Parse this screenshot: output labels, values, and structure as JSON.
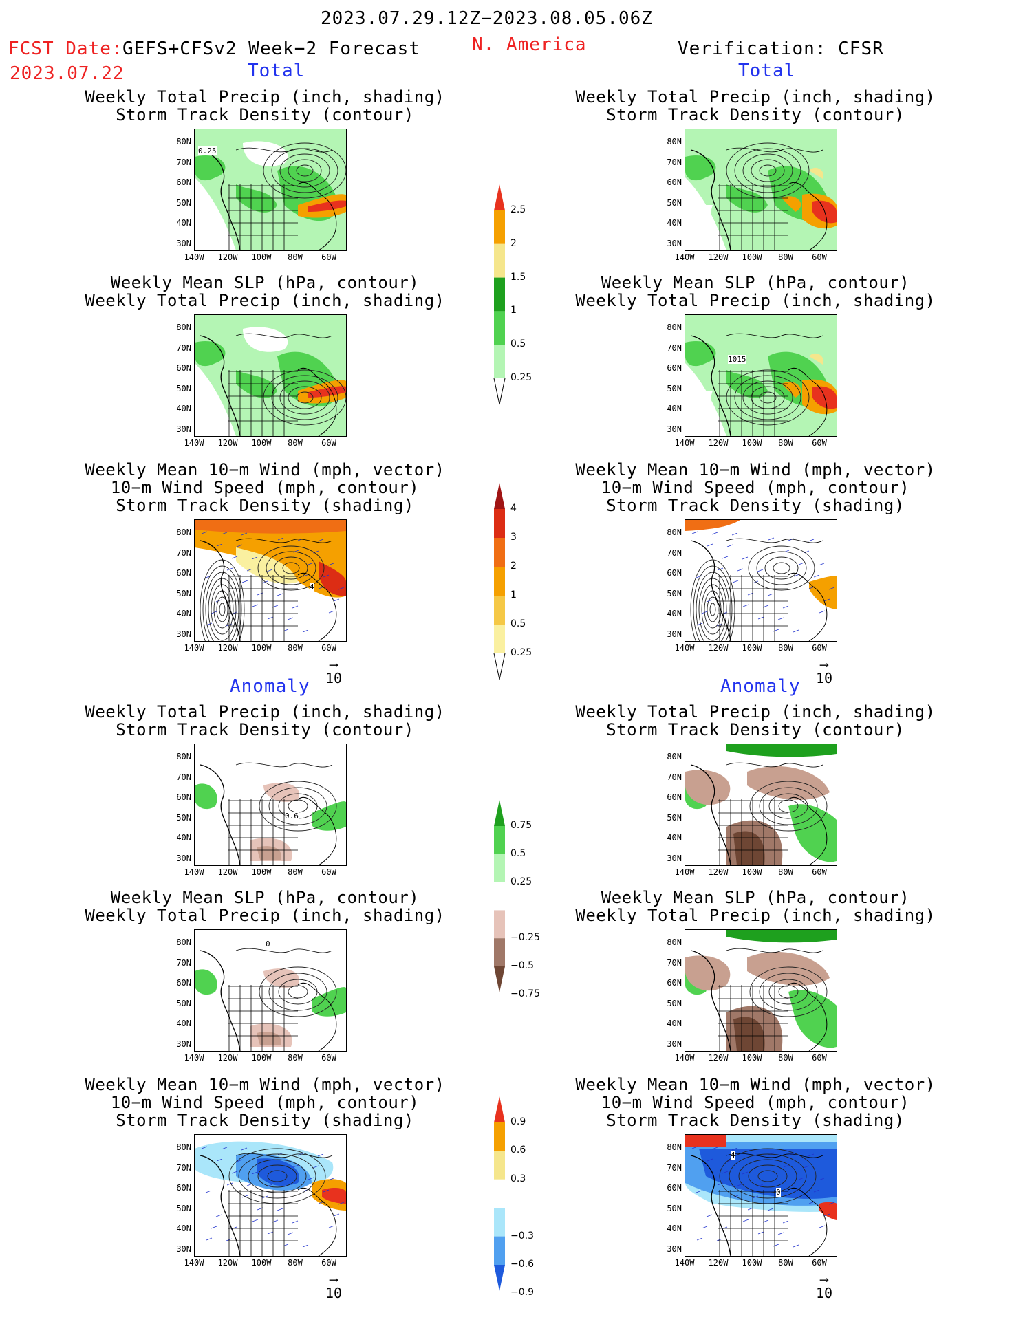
{
  "header": {
    "period": "2023.07.29.12Z−2023.08.05.06Z",
    "fcst_label": "FCST Date:",
    "fcst_date": "2023.07.22",
    "model": "GEFS+CFSv2 Week−2 Forecast",
    "region": "N. America",
    "verification": "Verification: CFSR"
  },
  "sections": {
    "total": "Total",
    "anomaly": "Anomaly"
  },
  "titles": {
    "precip_track": [
      "Weekly Total Precip (inch, shading)",
      "Storm Track Density (contour)"
    ],
    "slp_precip": [
      "Weekly Mean SLP (hPa, contour)",
      "Weekly Total Precip (inch, shading)"
    ],
    "wind_track": [
      "Weekly Mean 10−m Wind (mph, vector)",
      "10−m Wind Speed (mph, contour)",
      "Storm Track Density (shading)"
    ]
  },
  "axes": {
    "lat": [
      "80N",
      "70N",
      "60N",
      "50N",
      "40N",
      "30N"
    ],
    "lon": [
      "140W",
      "120W",
      "100W",
      "80W",
      "60W"
    ]
  },
  "vector_ref": "10",
  "map_labels": {
    "fcst_precip_contour": "0.25",
    "cfsr_slp_contour": "1015",
    "fcst_wind_contour": "4",
    "anom_precip_contour": "0.6",
    "anom_slp_contour": "0",
    "cfsr_anom_wind_a": "4",
    "cfsr_anom_wind_b": "0"
  },
  "colorbars": {
    "precip_total": {
      "labels": [
        "2.5",
        "2",
        "1.5",
        "1",
        "0.5",
        "0.25"
      ],
      "colors": [
        "#e8321e",
        "#f5a000",
        "#f5e68c",
        "#1ea01e",
        "#50d250",
        "#b4f5b4"
      ]
    },
    "storm_total": {
      "labels": [
        "4",
        "3",
        "2",
        "1",
        "0.5",
        "0.25"
      ],
      "colors": [
        "#a01414",
        "#dc2d14",
        "#f06e14",
        "#f5a000",
        "#f5c846",
        "#faf0a0"
      ]
    },
    "precip_anom": {
      "labels": [
        "0.75",
        "0.5",
        "0.25",
        "−0.25",
        "−0.5",
        "−0.75"
      ],
      "colors": [
        "#1ea01e",
        "#50d250",
        "#b4f5b4",
        "#ffffff",
        "#e6c3b9",
        "#a07868",
        "#6e4634"
      ]
    },
    "storm_anom": {
      "labels": [
        "0.9",
        "0.6",
        "0.3",
        "−0.3",
        "−0.6",
        "−0.9"
      ],
      "colors": [
        "#e8321e",
        "#f5a000",
        "#f5e68c",
        "#ffffff",
        "#aae6fa",
        "#50a0f0",
        "#1e5adc"
      ]
    }
  }
}
